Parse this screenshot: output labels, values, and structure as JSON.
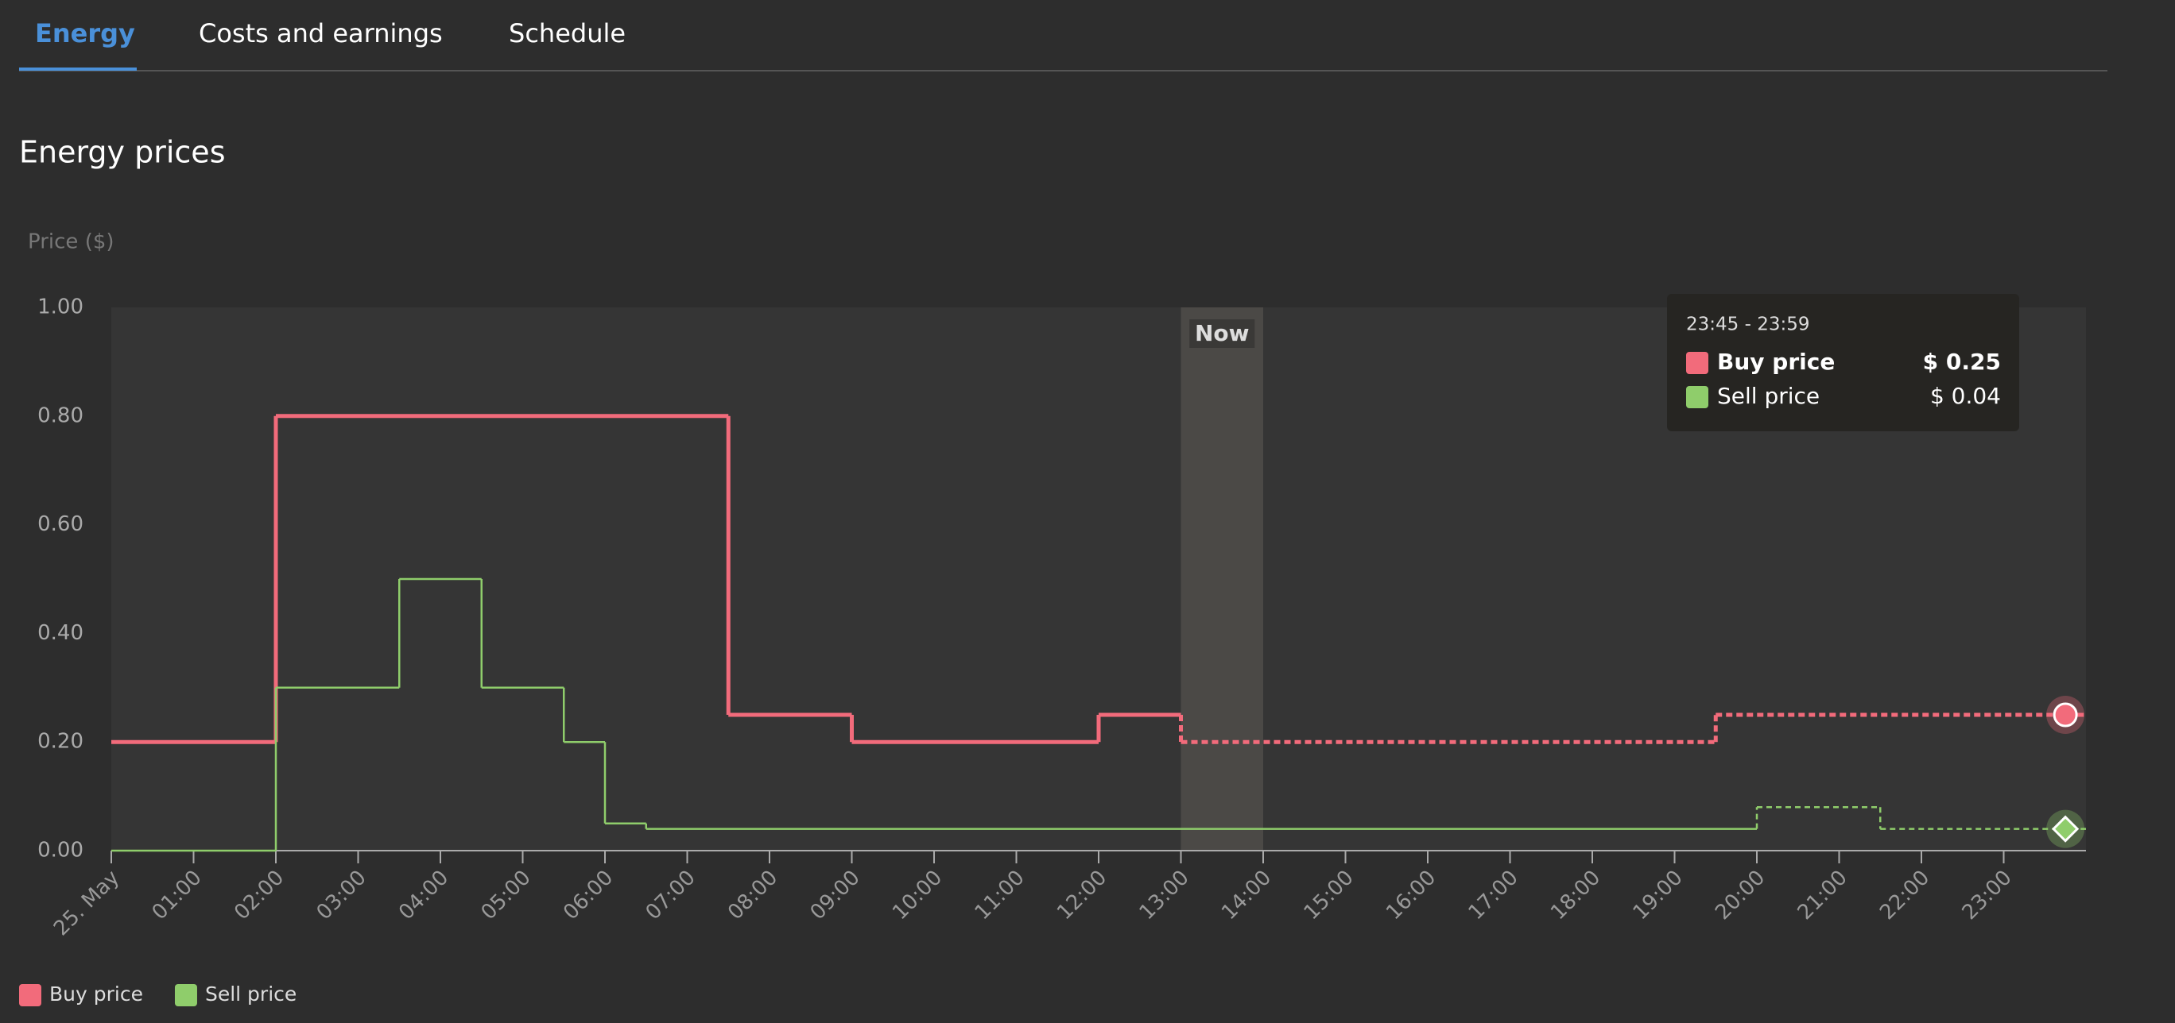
{
  "tabs": [
    "Energy",
    "Costs and earnings",
    "Schedule"
  ],
  "chart_data": {
    "type": "step-line",
    "title": "Energy prices",
    "y_label": "Price ($)",
    "xlim": [
      0,
      24
    ],
    "xticks": [
      {
        "value": 0,
        "label": "25. May"
      },
      {
        "value": 1,
        "label": "01:00"
      },
      {
        "value": 2,
        "label": "02:00"
      },
      {
        "value": 3,
        "label": "03:00"
      },
      {
        "value": 4,
        "label": "04:00"
      },
      {
        "value": 5,
        "label": "05:00"
      },
      {
        "value": 6,
        "label": "06:00"
      },
      {
        "value": 7,
        "label": "07:00"
      },
      {
        "value": 8,
        "label": "08:00"
      },
      {
        "value": 9,
        "label": "09:00"
      },
      {
        "value": 10,
        "label": "10:00"
      },
      {
        "value": 11,
        "label": "11:00"
      },
      {
        "value": 12,
        "label": "12:00"
      },
      {
        "value": 13,
        "label": "13:00"
      },
      {
        "value": 14,
        "label": "14:00"
      },
      {
        "value": 15,
        "label": "15:00"
      },
      {
        "value": 16,
        "label": "16:00"
      },
      {
        "value": 17,
        "label": "17:00"
      },
      {
        "value": 18,
        "label": "18:00"
      },
      {
        "value": 19,
        "label": "19:00"
      },
      {
        "value": 20,
        "label": "20:00"
      },
      {
        "value": 21,
        "label": "21:00"
      },
      {
        "value": 22,
        "label": "22:00"
      },
      {
        "value": 23,
        "label": "23:00"
      }
    ],
    "ylim": [
      0,
      1
    ],
    "yticks": [
      {
        "value": 0,
        "label": "0.00"
      },
      {
        "value": 0.2,
        "label": "0.20"
      },
      {
        "value": 0.4,
        "label": "0.40"
      },
      {
        "value": 0.6,
        "label": "0.60"
      },
      {
        "value": 0.8,
        "label": "0.80"
      },
      {
        "value": 1,
        "label": "1.00"
      }
    ],
    "now": {
      "label": "Now",
      "from": 13,
      "to": 14
    },
    "series": [
      {
        "name": "Buy price",
        "color": "#f26b7b",
        "x": [
          0,
          2,
          7.5,
          9,
          12,
          13,
          19.5
        ],
        "values": [
          0.2,
          0.8,
          0.25,
          0.2,
          0.25,
          0.2,
          0.25
        ]
      },
      {
        "name": "Sell price",
        "color": "#8fcd6b",
        "x": [
          0,
          2,
          3.5,
          4.5,
          5.5,
          6,
          6.5,
          20,
          21.5
        ],
        "values": [
          0,
          0.3,
          0.5,
          0.3,
          0.2,
          0.05,
          0.04,
          0.08,
          0.04
        ]
      }
    ],
    "tooltip": {
      "x": 23.75,
      "label": "23:45 - 23:59",
      "values": [
        0.25,
        0.04
      ],
      "value_labels": [
        "$ 0.25",
        "$ 0.04"
      ]
    }
  }
}
